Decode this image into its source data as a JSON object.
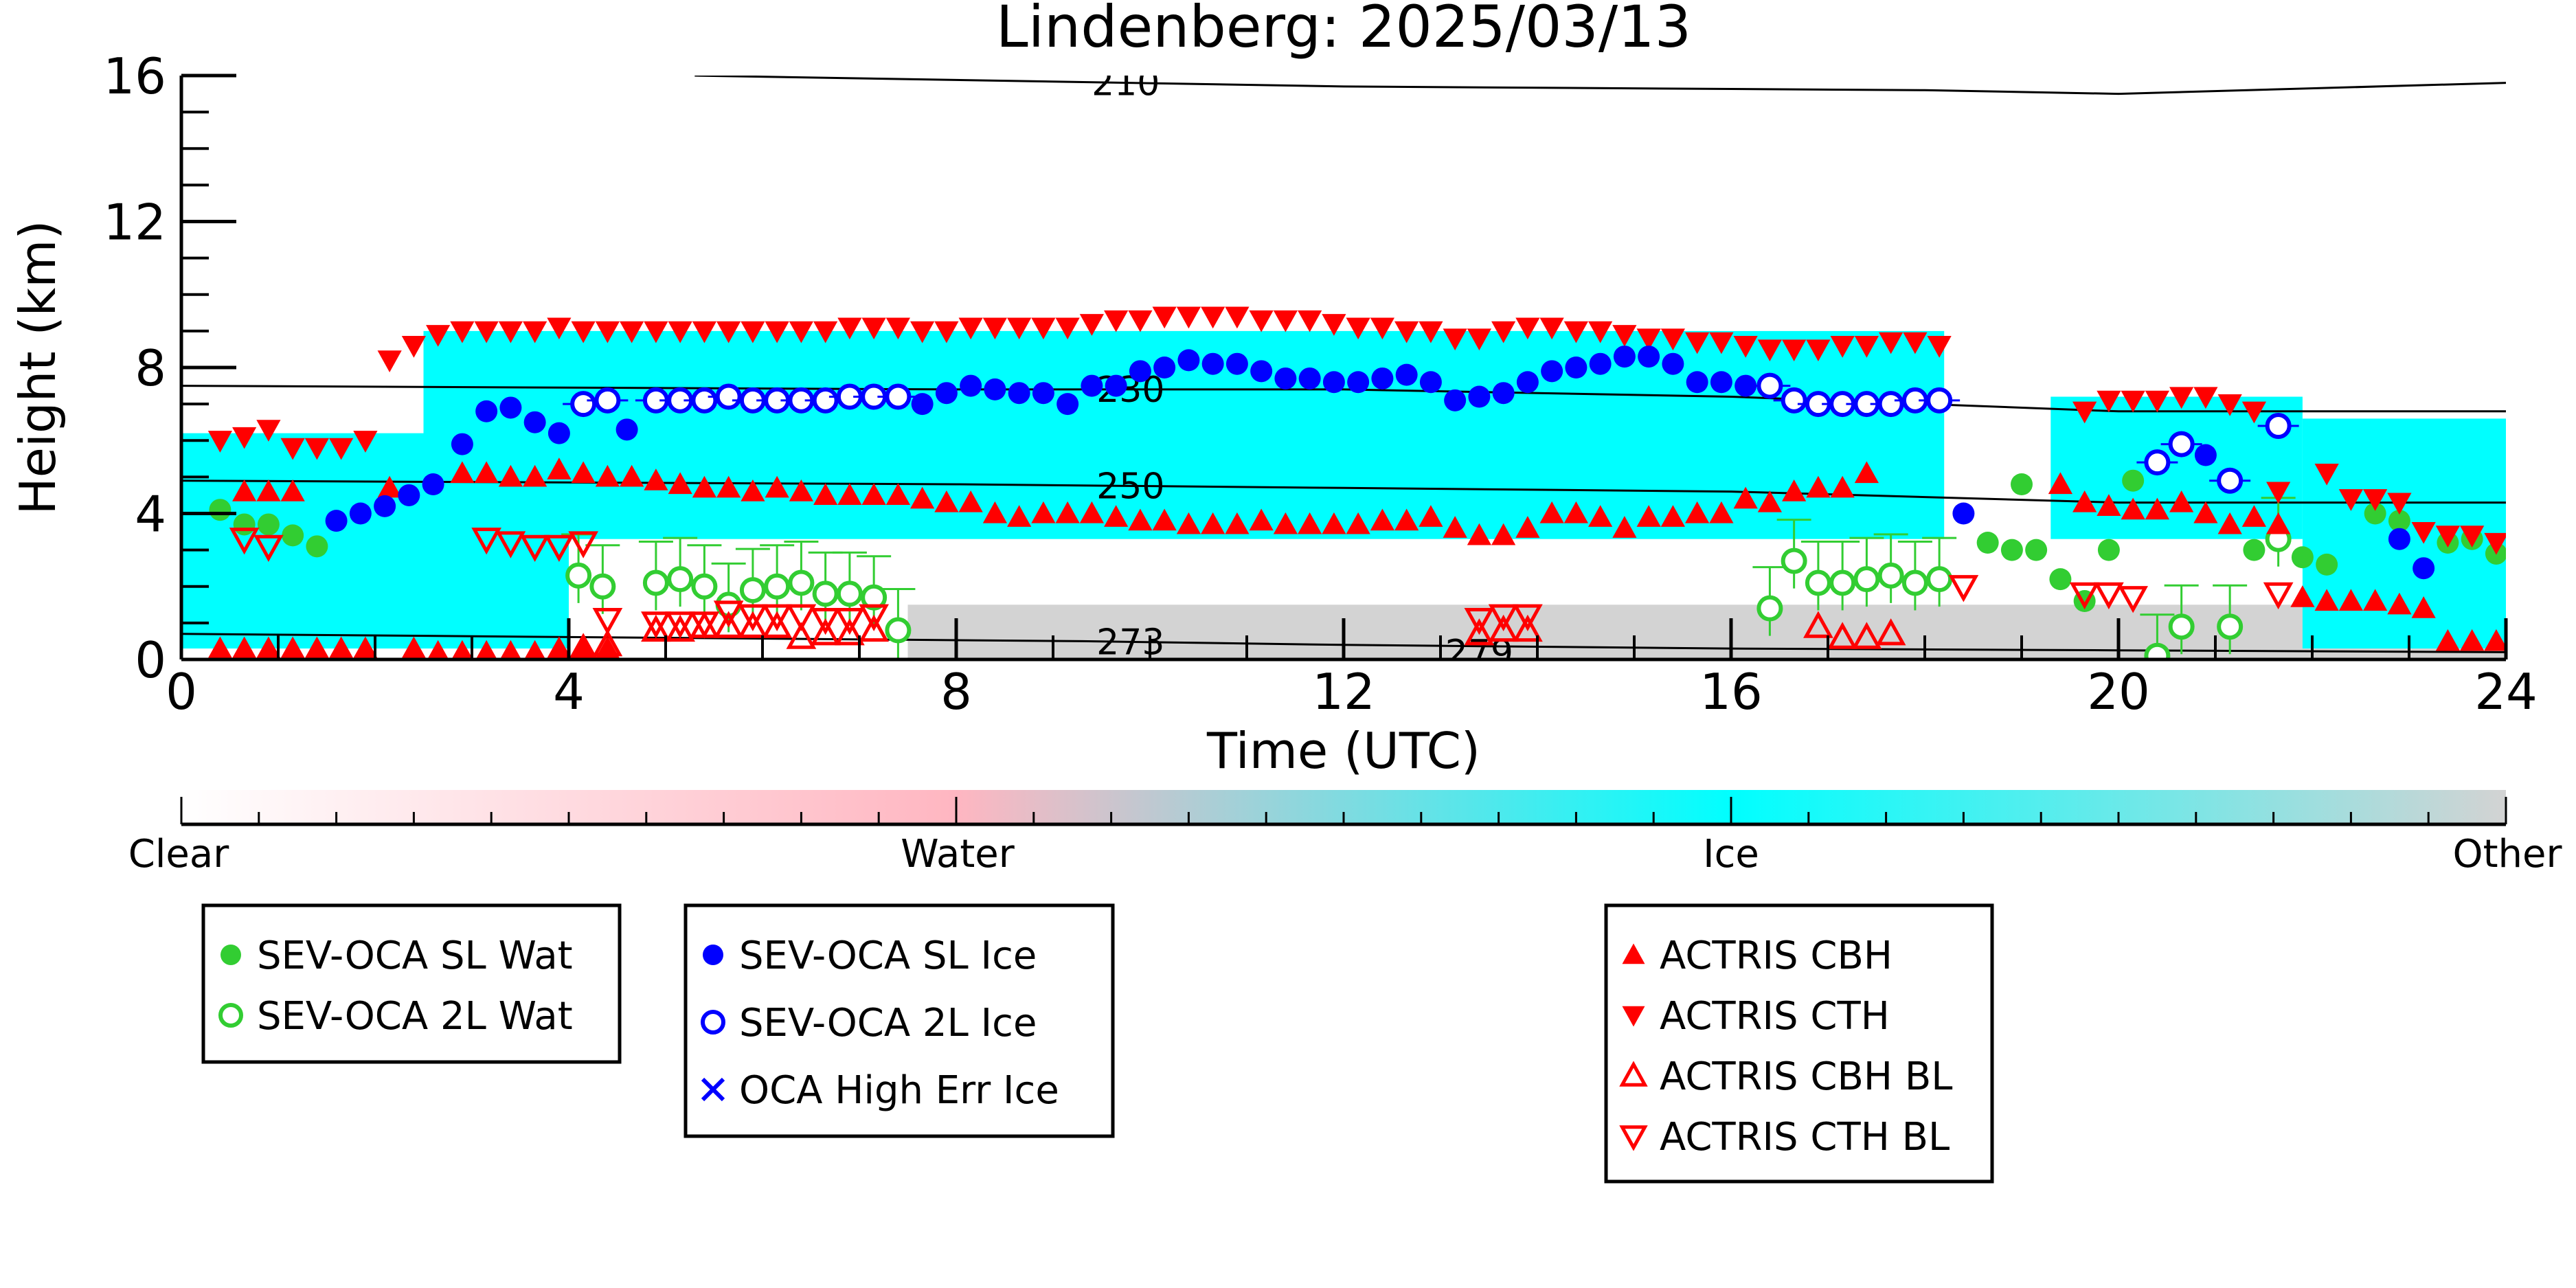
{
  "chart_data": {
    "type": "scatter",
    "title": "Lindenberg: 2025/03/13",
    "xlabel": "Time (UTC)",
    "ylabel": "Height (km)",
    "xlim": [
      0,
      24
    ],
    "ylim": [
      0,
      16
    ],
    "x_ticks": [
      0,
      4,
      8,
      12,
      16,
      20,
      24
    ],
    "y_ticks": [
      0,
      4,
      8,
      12,
      16
    ],
    "background_classification": {
      "colorbar_labels": [
        "Clear",
        "Water",
        "Ice",
        "Other"
      ],
      "colors": {
        "Clear": "#ffffff",
        "Water": "#ffb6c1",
        "Ice": "#00ffff",
        "Other": "#d3d3d3"
      },
      "ice_cloud_regions": [
        {
          "x": [
            0.0,
            2.5
          ],
          "y": [
            3.5,
            6.2
          ]
        },
        {
          "x": [
            2.5,
            18.2
          ],
          "y": [
            3.3,
            9.0
          ]
        },
        {
          "x": [
            19.3,
            21.9
          ],
          "y": [
            3.3,
            7.2
          ]
        },
        {
          "x": [
            21.9,
            24.0
          ],
          "y": [
            0.3,
            6.6
          ]
        },
        {
          "x": [
            0.0,
            4.0
          ],
          "y": [
            0.3,
            3.7
          ]
        }
      ],
      "other_regions": [
        {
          "x": [
            7.5,
            24.0
          ],
          "y": [
            0.0,
            1.5
          ]
        }
      ]
    },
    "temperature_contours": [
      {
        "label": "210",
        "points": [
          [
            5.3,
            16.0
          ],
          [
            12,
            15.7
          ],
          [
            18,
            15.6
          ],
          [
            20,
            15.5
          ],
          [
            24,
            15.8
          ]
        ]
      },
      {
        "label": "230",
        "points": [
          [
            0,
            7.5
          ],
          [
            8,
            7.4
          ],
          [
            12,
            7.4
          ],
          [
            16,
            7.2
          ],
          [
            20,
            6.8
          ],
          [
            24,
            6.8
          ]
        ]
      },
      {
        "label": "250",
        "points": [
          [
            0,
            4.9
          ],
          [
            8,
            4.8
          ],
          [
            12,
            4.7
          ],
          [
            16,
            4.6
          ],
          [
            20,
            4.3
          ],
          [
            24,
            4.3
          ]
        ]
      },
      {
        "label": "273",
        "points": [
          [
            0,
            0.7
          ],
          [
            9.3,
            0.5
          ],
          [
            12,
            0.4
          ],
          [
            16,
            0.3
          ],
          [
            20,
            0.25
          ],
          [
            24,
            0.2
          ]
        ]
      },
      {
        "label": "279",
        "points": []
      }
    ],
    "series": [
      {
        "name": "SEV-OCA SL Wat",
        "marker": "filled-circle",
        "color": "#32cd32",
        "x": [
          0.4,
          0.65,
          0.9,
          1.15,
          1.4,
          19.0,
          18.65,
          18.9,
          19.15,
          19.4,
          19.65,
          19.9,
          20.15,
          21.4,
          21.9,
          22.15,
          22.65,
          22.9,
          23.4,
          23.65,
          23.9
        ],
        "y": [
          4.1,
          3.7,
          3.7,
          3.4,
          3.1,
          4.8,
          3.2,
          3.0,
          3.0,
          2.2,
          1.6,
          3.0,
          4.9,
          3.0,
          2.8,
          2.6,
          4.0,
          3.8,
          3.2,
          3.3,
          2.9
        ]
      },
      {
        "name": "SEV-OCA 2L Wat",
        "marker": "open-circle",
        "color": "#32cd32",
        "x": [
          4.1,
          4.35,
          4.9,
          5.15,
          5.4,
          5.65,
          5.9,
          6.15,
          6.4,
          6.65,
          6.9,
          7.15,
          7.4,
          16.4,
          16.65,
          16.9,
          17.15,
          17.4,
          17.65,
          17.9,
          18.15,
          20.4,
          20.65,
          21.15,
          21.65
        ],
        "y": [
          2.3,
          2.0,
          2.1,
          2.2,
          2.0,
          1.5,
          1.9,
          2.0,
          2.1,
          1.8,
          1.8,
          1.7,
          0.8,
          1.4,
          2.7,
          2.1,
          2.1,
          2.2,
          2.3,
          2.1,
          2.2,
          0.1,
          0.9,
          0.9,
          3.3
        ]
      },
      {
        "name": "SEV-OCA SL Ice",
        "marker": "filled-circle",
        "color": "#0000ff",
        "x": [
          1.6,
          1.85,
          2.1,
          2.35,
          2.6,
          2.9,
          3.15,
          3.4,
          3.65,
          3.9,
          4.6,
          7.65,
          7.9,
          8.15,
          8.4,
          8.65,
          8.9,
          9.15,
          9.4,
          9.65,
          9.9,
          10.15,
          10.4,
          10.65,
          10.9,
          11.15,
          11.4,
          11.65,
          11.9,
          12.15,
          12.4,
          12.65,
          12.9,
          13.15,
          13.4,
          13.65,
          13.9,
          14.15,
          14.4,
          14.65,
          14.9,
          15.15,
          15.4,
          15.65,
          15.9,
          16.15,
          18.4,
          20.9,
          22.9,
          23.15
        ],
        "y": [
          3.8,
          4.0,
          4.2,
          4.5,
          4.8,
          5.9,
          6.8,
          6.9,
          6.5,
          6.2,
          6.3,
          7.0,
          7.3,
          7.5,
          7.4,
          7.3,
          7.3,
          7.0,
          7.5,
          7.5,
          7.9,
          8.0,
          8.2,
          8.1,
          8.1,
          7.9,
          7.7,
          7.7,
          7.6,
          7.6,
          7.7,
          7.8,
          7.6,
          7.1,
          7.2,
          7.3,
          7.6,
          7.9,
          8.0,
          8.1,
          8.3,
          8.3,
          8.1,
          7.6,
          7.6,
          7.5,
          4.0,
          5.6,
          3.3,
          2.5
        ]
      },
      {
        "name": "SEV-OCA 2L Ice",
        "marker": "open-circle",
        "color": "#0000ff",
        "x": [
          4.15,
          4.4,
          4.9,
          5.15,
          5.4,
          5.65,
          5.9,
          6.15,
          6.4,
          6.65,
          6.9,
          7.15,
          7.4,
          16.4,
          16.65,
          16.9,
          17.15,
          17.4,
          17.65,
          17.9,
          18.15,
          20.4,
          20.65,
          21.15,
          21.65
        ],
        "y": [
          7.0,
          7.1,
          7.1,
          7.1,
          7.1,
          7.2,
          7.1,
          7.1,
          7.1,
          7.1,
          7.2,
          7.2,
          7.2,
          7.5,
          7.1,
          7.0,
          7.0,
          7.0,
          7.0,
          7.1,
          7.1,
          5.4,
          5.9,
          4.9,
          6.4
        ]
      },
      {
        "name": "OCA High Err Ice",
        "marker": "x",
        "color": "#0000ff",
        "x": [],
        "y": []
      },
      {
        "name": "ACTRIS CBH",
        "marker": "filled-triangle-up",
        "color": "#ff0000",
        "x": [
          0.4,
          0.65,
          0.9,
          1.15,
          1.4,
          1.65,
          1.9,
          2.4,
          2.65,
          2.9,
          3.15,
          3.4,
          3.65,
          3.9,
          4.15,
          4.4,
          2.15,
          2.9,
          3.15,
          3.4,
          3.65,
          3.9,
          4.15,
          4.4,
          4.65,
          4.9,
          5.15,
          5.4,
          5.65,
          5.9,
          6.15,
          6.4,
          6.65,
          6.9,
          7.15,
          7.4,
          7.65,
          7.9,
          8.15,
          8.4,
          8.65,
          8.9,
          9.15,
          9.4,
          9.65,
          9.9,
          10.15,
          10.4,
          10.65,
          10.9,
          11.15,
          11.4,
          11.65,
          11.9,
          12.15,
          12.4,
          12.65,
          12.9,
          13.15,
          13.4,
          13.65,
          13.9,
          14.15,
          14.4,
          14.65,
          14.9,
          15.15,
          15.4,
          15.65,
          15.9,
          16.15,
          16.4,
          16.65,
          16.9,
          17.15,
          17.4,
          0.65,
          0.9,
          1.15,
          19.4,
          19.65,
          19.9,
          20.15,
          20.4,
          20.65,
          20.9,
          21.15,
          21.4,
          21.65,
          21.9,
          22.15,
          22.4,
          22.65,
          22.9,
          23.15,
          23.4,
          23.65,
          23.9
        ],
        "y": [
          0.3,
          0.3,
          0.3,
          0.3,
          0.3,
          0.3,
          0.3,
          0.3,
          0.2,
          0.2,
          0.2,
          0.2,
          0.2,
          0.3,
          0.3,
          0.3,
          4.7,
          5.1,
          5.1,
          5.0,
          5.0,
          5.2,
          5.1,
          5.0,
          5.0,
          4.9,
          4.8,
          4.7,
          4.7,
          4.6,
          4.7,
          4.6,
          4.5,
          4.5,
          4.5,
          4.5,
          4.4,
          4.3,
          4.3,
          4.0,
          3.9,
          4.0,
          4.0,
          4.0,
          3.9,
          3.8,
          3.8,
          3.7,
          3.7,
          3.7,
          3.8,
          3.7,
          3.7,
          3.7,
          3.7,
          3.8,
          3.8,
          3.9,
          3.6,
          3.4,
          3.4,
          3.6,
          4.0,
          4.0,
          3.9,
          3.6,
          3.9,
          3.9,
          4.0,
          4.0,
          4.4,
          4.3,
          4.6,
          4.7,
          4.7,
          5.1,
          4.6,
          4.6,
          4.6,
          4.8,
          4.3,
          4.2,
          4.1,
          4.1,
          4.3,
          4.0,
          3.7,
          3.9,
          3.7,
          1.7,
          1.6,
          1.6,
          1.6,
          1.5,
          1.4,
          0.5,
          0.5,
          0.5
        ]
      },
      {
        "name": "ACTRIS CTH",
        "marker": "filled-triangle-down",
        "color": "#ff0000",
        "x": [
          0.4,
          0.65,
          0.9,
          1.15,
          1.4,
          1.65,
          1.9,
          2.15,
          2.4,
          2.65,
          2.9,
          3.15,
          3.4,
          3.65,
          3.9,
          4.15,
          4.4,
          4.65,
          4.9,
          5.15,
          5.4,
          5.65,
          5.9,
          6.15,
          6.4,
          6.65,
          6.9,
          7.15,
          7.4,
          7.65,
          7.9,
          8.15,
          8.4,
          8.65,
          8.9,
          9.15,
          9.4,
          9.65,
          9.9,
          10.15,
          10.4,
          10.65,
          10.9,
          11.15,
          11.4,
          11.65,
          11.9,
          12.15,
          12.4,
          12.65,
          12.9,
          13.15,
          13.4,
          13.65,
          13.9,
          14.15,
          14.4,
          14.65,
          14.9,
          15.15,
          15.4,
          15.65,
          15.9,
          16.15,
          16.4,
          16.65,
          16.9,
          17.15,
          17.4,
          17.65,
          17.9,
          18.15,
          19.65,
          19.9,
          20.15,
          20.4,
          20.65,
          20.9,
          21.15,
          21.4,
          21.65,
          22.15,
          22.4,
          22.65,
          22.9,
          23.15,
          23.4,
          23.65,
          23.9
        ],
        "y": [
          6.0,
          6.1,
          6.3,
          5.8,
          5.8,
          5.8,
          6.0,
          8.2,
          8.6,
          8.9,
          9.0,
          9.0,
          9.0,
          9.0,
          9.1,
          9.0,
          9.0,
          9.0,
          9.0,
          9.0,
          9.0,
          9.0,
          9.0,
          9.0,
          9.0,
          9.0,
          9.1,
          9.1,
          9.1,
          9.0,
          9.0,
          9.1,
          9.1,
          9.1,
          9.1,
          9.1,
          9.2,
          9.3,
          9.3,
          9.4,
          9.4,
          9.4,
          9.4,
          9.3,
          9.3,
          9.3,
          9.2,
          9.1,
          9.1,
          9.0,
          9.0,
          8.8,
          8.8,
          9.0,
          9.1,
          9.1,
          9.0,
          9.0,
          8.9,
          8.8,
          8.8,
          8.7,
          8.7,
          8.6,
          8.5,
          8.5,
          8.5,
          8.6,
          8.6,
          8.7,
          8.7,
          8.6,
          6.8,
          7.1,
          7.1,
          7.1,
          7.2,
          7.2,
          7.0,
          6.8,
          4.6,
          5.1,
          4.4,
          4.4,
          4.3,
          3.5,
          3.4,
          3.4,
          3.2
        ]
      },
      {
        "name": "ACTRIS CBH BL",
        "marker": "open-triangle-up",
        "color": "#ff0000",
        "x": [
          4.15,
          4.4,
          4.9,
          5.15,
          5.4,
          5.65,
          5.9,
          6.15,
          6.4,
          6.65,
          6.9,
          7.15,
          13.4,
          13.65,
          13.9,
          16.9,
          17.15,
          17.4,
          17.65
        ],
        "y": [
          0.3,
          0.4,
          0.8,
          0.8,
          0.9,
          0.9,
          0.9,
          0.9,
          0.6,
          0.7,
          0.7,
          0.8,
          0.7,
          0.8,
          0.8,
          0.9,
          0.6,
          0.6,
          0.7
        ]
      },
      {
        "name": "ACTRIS CTH BL",
        "marker": "open-triangle-down",
        "color": "#ff0000",
        "x": [
          0.65,
          0.9,
          3.15,
          3.4,
          3.65,
          3.9,
          4.15,
          4.4,
          4.9,
          5.15,
          5.4,
          5.65,
          5.9,
          6.15,
          6.4,
          6.65,
          6.9,
          7.15,
          13.4,
          13.65,
          13.9,
          18.4,
          19.65,
          19.9,
          20.15,
          21.65
        ],
        "y": [
          3.3,
          3.1,
          3.3,
          3.2,
          3.1,
          3.1,
          3.2,
          1.1,
          1.0,
          1.0,
          1.0,
          1.3,
          1.2,
          1.2,
          1.2,
          1.1,
          1.1,
          1.2,
          1.1,
          1.2,
          1.2,
          2.0,
          1.8,
          1.8,
          1.7,
          1.8
        ]
      }
    ]
  }
}
